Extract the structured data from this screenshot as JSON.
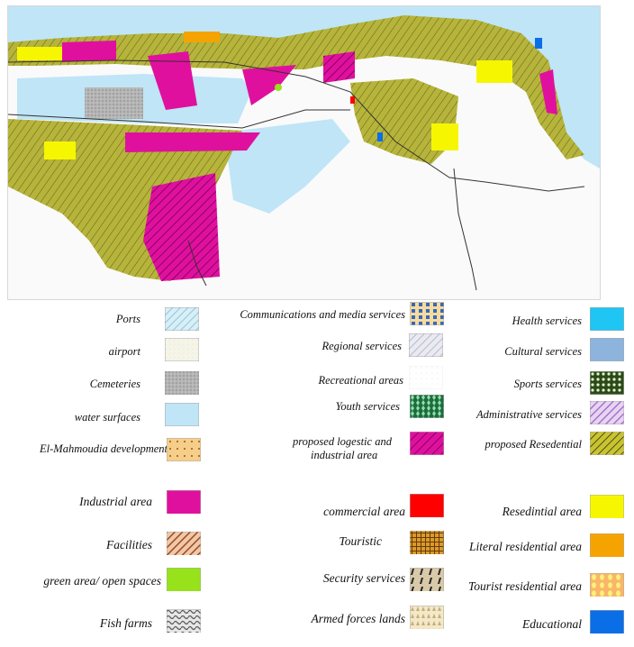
{
  "legend": {
    "col1": [
      {
        "label": "Ports",
        "pattern": "ports"
      },
      {
        "label": "airport",
        "pattern": "airport"
      },
      {
        "label": "Cemeteries",
        "pattern": "cemeteries"
      },
      {
        "label": "water surfaces",
        "pattern": "water"
      },
      {
        "label": "El-Mahmoudia development",
        "pattern": "mahmoudia"
      },
      {
        "label": "Industrial area",
        "pattern": "industrial"
      },
      {
        "label": "Facilities",
        "pattern": "facilities"
      },
      {
        "label": "green area/ open spaces",
        "pattern": "green"
      },
      {
        "label": "Fish farms",
        "pattern": "fish"
      }
    ],
    "col2": [
      {
        "label": "Communications and media services",
        "pattern": "comms"
      },
      {
        "label": "Regional services",
        "pattern": "regional"
      },
      {
        "label": "Recreational areas",
        "pattern": "recreational"
      },
      {
        "label": "Youth services",
        "pattern": "youth"
      },
      {
        "label": "proposed logestic and",
        "label2": "industrial area",
        "pattern": "logistic"
      },
      {
        "label": "commercial area",
        "pattern": "commercial"
      },
      {
        "label": "Touristic",
        "pattern": "touristic"
      },
      {
        "label": "Security services",
        "pattern": "security"
      },
      {
        "label": "Armed forces lands",
        "pattern": "armed"
      }
    ],
    "col3": [
      {
        "label": "Health services",
        "pattern": "health"
      },
      {
        "label": "Cultural services",
        "pattern": "cultural"
      },
      {
        "label": "Sports services",
        "pattern": "sports"
      },
      {
        "label": "Administrative services",
        "pattern": "admin"
      },
      {
        "label": "proposed  Resedential",
        "pattern": "propres"
      },
      {
        "label": "Resedintial area",
        "pattern": "residential"
      },
      {
        "label": "Literal residential area",
        "pattern": "literal"
      },
      {
        "label": "Tourist residential area",
        "pattern": "touristres"
      },
      {
        "label": "Educational",
        "pattern": "educational"
      }
    ]
  },
  "colors": {
    "water": "#bfe5f7",
    "residential": "#f6f600",
    "proposed_residential": "#b9b52a",
    "industrial": "#e0109e",
    "commercial": "#ff0000",
    "literal_residential": "#f5a300",
    "green": "#97e21a",
    "health": "#1fc5f3",
    "cultural": "#8db4dc",
    "educational": "#0a6fe6"
  }
}
